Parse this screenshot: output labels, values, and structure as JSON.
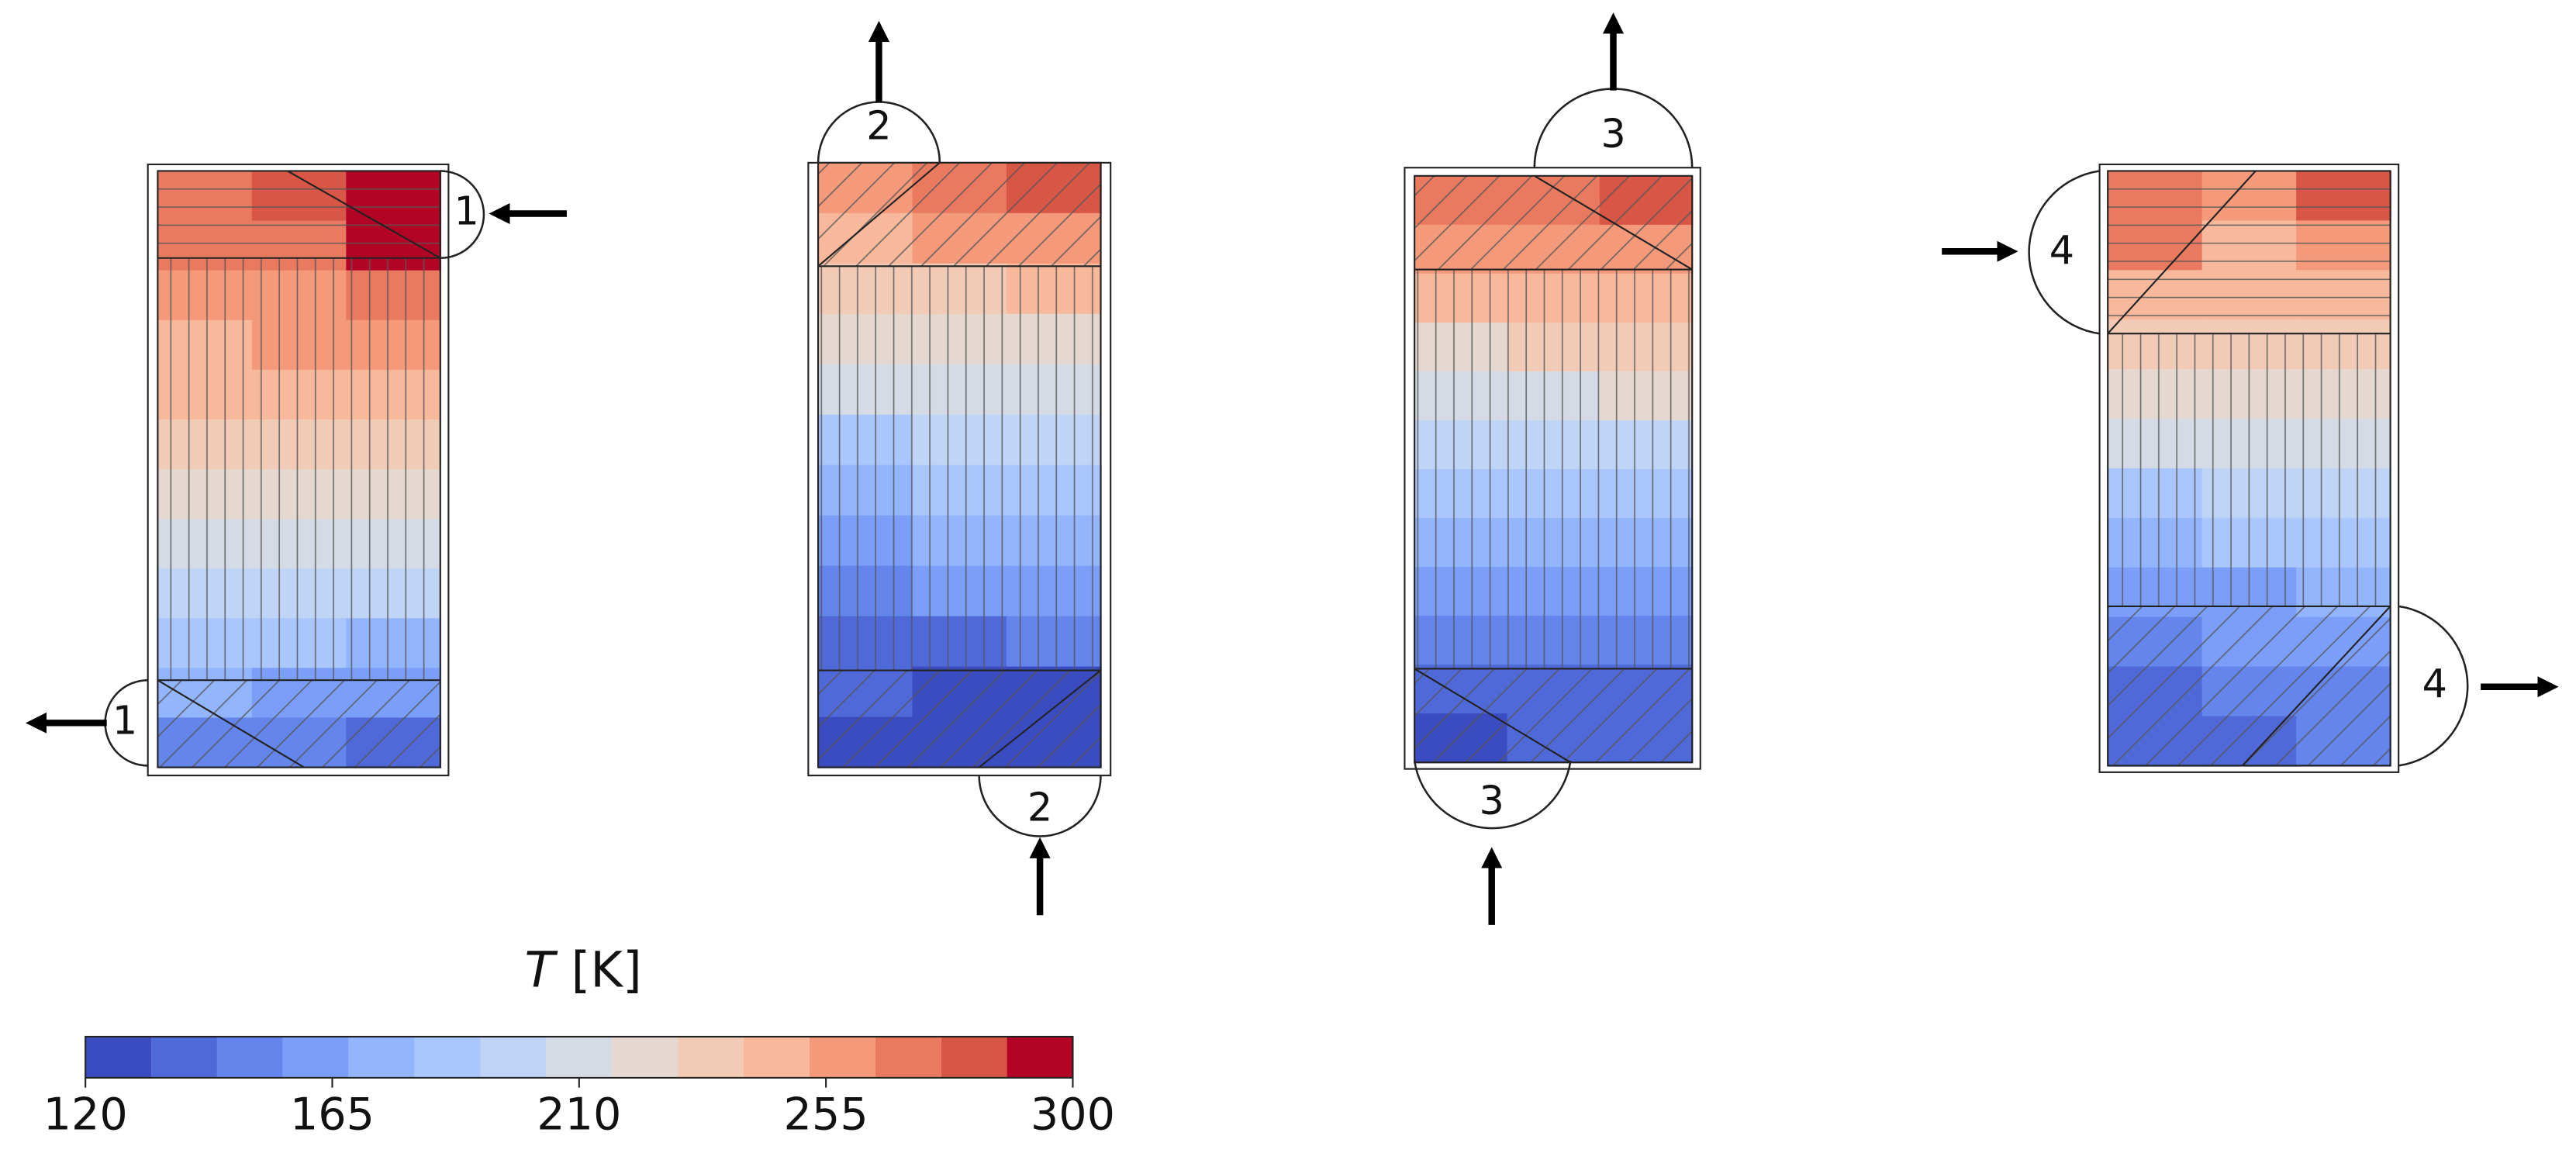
{
  "chart_data": {
    "type": "contour",
    "colorbar_label": {
      "symbol": "T",
      "unit": "[K]"
    },
    "clim": [
      120,
      300
    ],
    "ticks": [
      120,
      165,
      210,
      255,
      300
    ],
    "levels": [
      120,
      132,
      144,
      156,
      168,
      180,
      192,
      204,
      216,
      228,
      240,
      252,
      264,
      276,
      288,
      300
    ],
    "colors": [
      "#3b4cc0",
      "#4f69d9",
      "#6485ec",
      "#7b9ff9",
      "#93b5fe",
      "#aac7fd",
      "#c0d4f5",
      "#d5dbe5",
      "#e5d8d1",
      "#f2cbb7",
      "#f7b89c",
      "#f49a7b",
      "#e97a5f",
      "#d85646",
      "#b40426"
    ],
    "panels": [
      {
        "ports": [
          {
            "label": "1"
          },
          {
            "label": "1"
          }
        ],
        "temperatures": [
          [
            270,
            285,
            296
          ],
          [
            264,
            274,
            288
          ],
          [
            256,
            262,
            272
          ],
          [
            248,
            252,
            258
          ],
          [
            240,
            242,
            246
          ],
          [
            230,
            232,
            234
          ],
          [
            220,
            220,
            222
          ],
          [
            208,
            208,
            208
          ],
          [
            196,
            196,
            194
          ],
          [
            184,
            182,
            178
          ],
          [
            168,
            164,
            158
          ],
          [
            150,
            146,
            142
          ]
        ]
      },
      {
        "ports": [
          {
            "label": "2"
          },
          {
            "label": "2"
          }
        ],
        "temperatures": [
          [
            262,
            268,
            282
          ],
          [
            248,
            252,
            256
          ],
          [
            232,
            236,
            240
          ],
          [
            218,
            220,
            222
          ],
          [
            204,
            206,
            208
          ],
          [
            190,
            192,
            194
          ],
          [
            178,
            180,
            182
          ],
          [
            166,
            168,
            172
          ],
          [
            152,
            156,
            164
          ],
          [
            140,
            142,
            150
          ],
          [
            134,
            128,
            124
          ],
          [
            130,
            124,
            122
          ]
        ]
      },
      {
        "ports": [
          {
            "label": "3"
          },
          {
            "label": "3"
          }
        ],
        "temperatures": [
          [
            266,
            272,
            280
          ],
          [
            254,
            258,
            262
          ],
          [
            240,
            242,
            246
          ],
          [
            226,
            228,
            230
          ],
          [
            212,
            214,
            216
          ],
          [
            198,
            200,
            202
          ],
          [
            186,
            186,
            188
          ],
          [
            172,
            174,
            176
          ],
          [
            160,
            160,
            162
          ],
          [
            148,
            150,
            152
          ],
          [
            138,
            140,
            140
          ],
          [
            130,
            132,
            134
          ]
        ]
      },
      {
        "ports": [
          {
            "label": "4"
          },
          {
            "label": "4"
          }
        ],
        "temperatures": [
          [
            272,
            262,
            276
          ],
          [
            266,
            250,
            262
          ],
          [
            244,
            244,
            248
          ],
          [
            230,
            232,
            232
          ],
          [
            218,
            220,
            220
          ],
          [
            204,
            206,
            206
          ],
          [
            190,
            192,
            192
          ],
          [
            178,
            180,
            180
          ],
          [
            164,
            166,
            170
          ],
          [
            152,
            156,
            162
          ],
          [
            140,
            144,
            150
          ],
          [
            132,
            136,
            144
          ]
        ]
      }
    ]
  }
}
